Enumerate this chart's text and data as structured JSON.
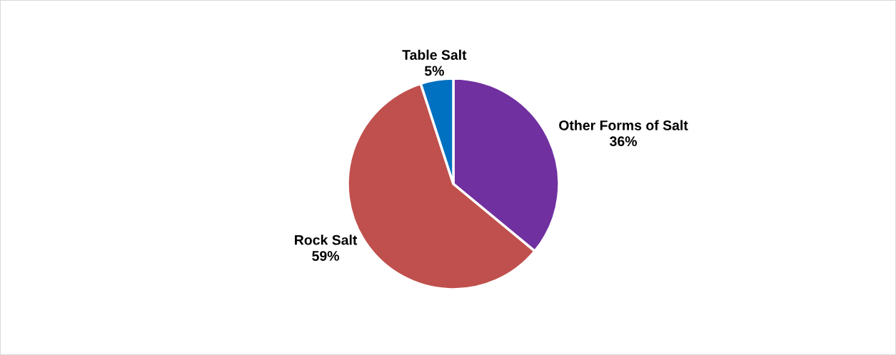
{
  "chart_data": {
    "type": "pie",
    "categories": [
      "Other Forms of Salt",
      "Rock Salt",
      "Table Salt"
    ],
    "values": [
      36,
      59,
      5
    ],
    "colors": [
      "#7030a0",
      "#c0504d",
      "#0070c0"
    ],
    "value_labels": [
      "36%",
      "59%",
      "5%"
    ],
    "legend": false
  }
}
